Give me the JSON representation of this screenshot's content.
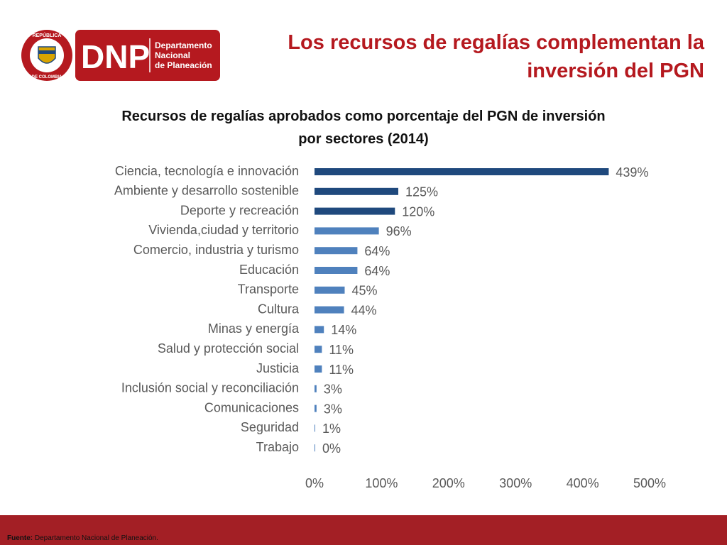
{
  "header": {
    "title_line1": "Los recursos de regalías complementan la",
    "title_line2": "inversión del PGN",
    "logo": {
      "seal_text_top": "REPÚBLICA",
      "seal_text_bottom": "DE COLOMBIA",
      "acronym": "DNP",
      "name_line1": "Departamento",
      "name_line2": "Nacional",
      "name_line3": "de Planeación",
      "color": "#b5191f"
    }
  },
  "chart_data": {
    "type": "bar",
    "orientation": "horizontal",
    "title_line1": "Recursos de regalías aprobados como porcentaje del PGN de inversión",
    "title_line2": "por sectores (2014)",
    "categories": [
      "Ciencia, tecnología e innovación",
      "Ambiente y desarrollo sostenible",
      "Deporte y recreación",
      "Vivienda,ciudad y territorio",
      "Comercio, industria y turismo",
      "Educación",
      "Transporte",
      "Cultura",
      "Minas y energía",
      "Salud y protección social",
      "Justicia",
      "Inclusión social y reconciliación",
      "Comunicaciones",
      "Seguridad",
      "Trabajo"
    ],
    "values": [
      439,
      125,
      120,
      96,
      64,
      64,
      45,
      44,
      14,
      11,
      11,
      3,
      3,
      1,
      0
    ],
    "value_labels": [
      "439%",
      "125%",
      "120%",
      "96%",
      "64%",
      "64%",
      "45%",
      "44%",
      "14%",
      "11%",
      "11%",
      "3%",
      "3%",
      "1%",
      "0%"
    ],
    "bar_colors": [
      "#1f497d",
      "#1f497d",
      "#1f497d",
      "#4f81bd",
      "#4f81bd",
      "#4f81bd",
      "#4f81bd",
      "#4f81bd",
      "#4f81bd",
      "#4f81bd",
      "#4f81bd",
      "#4f81bd",
      "#4f81bd",
      "#4f81bd",
      "#4f81bd"
    ],
    "xlim": [
      0,
      500
    ],
    "x_ticks": [
      0,
      100,
      200,
      300,
      400,
      500
    ],
    "x_tick_labels": [
      "0%",
      "100%",
      "200%",
      "300%",
      "400%",
      "500%"
    ],
    "grid": false,
    "legend": "none"
  },
  "footer": {
    "source_label": "Fuente:",
    "source_text": " Departamento Nacional de Planeación.",
    "color": "#a31f25"
  }
}
